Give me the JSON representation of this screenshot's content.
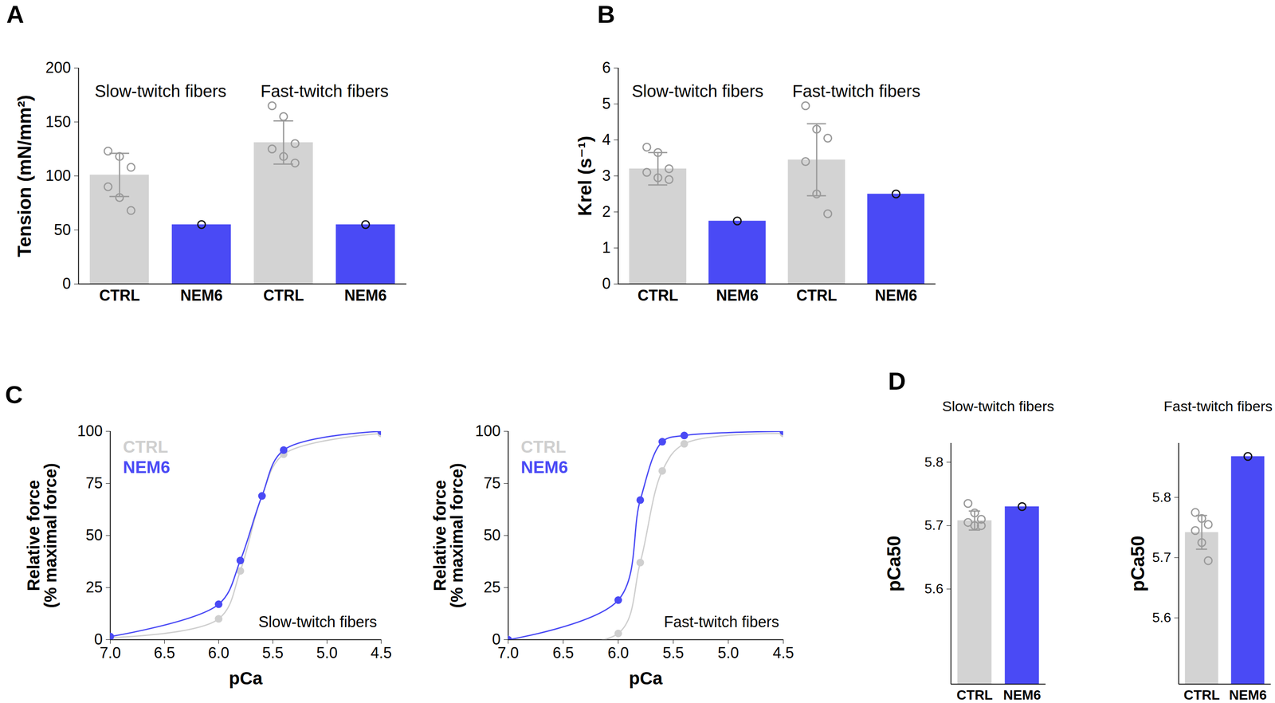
{
  "chart_data": [
    {
      "panel": "A",
      "type": "bar",
      "ylabel": "Tension (mN/mm²)",
      "group_labels": [
        "Slow-twitch fibers",
        "Fast-twitch fibers"
      ],
      "categories": [
        "CTRL",
        "NEM6",
        "CTRL",
        "NEM6"
      ],
      "values": [
        101,
        55,
        131,
        55
      ],
      "errors": [
        20,
        null,
        20,
        null
      ],
      "points": [
        [
          123,
          118,
          108,
          90,
          80,
          68
        ],
        [
          55
        ],
        [
          165,
          155,
          130,
          125,
          118,
          112
        ],
        [
          55
        ]
      ],
      "colors": [
        "#d3d3d3",
        "#4a4af5",
        "#d3d3d3",
        "#4a4af5"
      ],
      "ylim": [
        0,
        200
      ],
      "yticks": [
        0,
        50,
        100,
        150,
        200
      ]
    },
    {
      "panel": "B",
      "type": "bar",
      "ylabel": "Krel (s⁻¹)",
      "group_labels": [
        "Slow-twitch fibers",
        "Fast-twitch fibers"
      ],
      "categories": [
        "CTRL",
        "NEM6",
        "CTRL",
        "NEM6"
      ],
      "values": [
        3.2,
        1.75,
        3.45,
        2.5
      ],
      "errors": [
        0.45,
        null,
        1.0,
        null
      ],
      "points": [
        [
          3.8,
          3.65,
          3.2,
          3.1,
          2.95,
          2.9
        ],
        [
          1.75
        ],
        [
          4.95,
          4.3,
          4.05,
          3.4,
          2.5,
          1.95
        ],
        [
          2.5
        ]
      ],
      "colors": [
        "#d3d3d3",
        "#4a4af5",
        "#d3d3d3",
        "#4a4af5"
      ],
      "ylim": [
        0,
        6
      ],
      "yticks": [
        0,
        1,
        2,
        3,
        4,
        5,
        6
      ]
    },
    {
      "panel": "C",
      "type": "line",
      "ylabel": "Relative force\n(% maximal force)",
      "xlabel": "pCa",
      "annotation": "Slow-twitch fibers",
      "legend": "top-left",
      "marker": "circle",
      "x": [
        7.0,
        6.0,
        5.8,
        5.6,
        5.4,
        4.5
      ],
      "series": [
        {
          "name": "CTRL",
          "color": "#cfcfcf",
          "values": [
            1,
            10,
            33,
            69,
            89,
            99
          ]
        },
        {
          "name": "NEM6",
          "color": "#4a4af5",
          "values": [
            1.5,
            17,
            38,
            69,
            91,
            100
          ]
        }
      ],
      "xlim": [
        7.0,
        4.5
      ],
      "xticks": [
        {
          "value": 7,
          "label": "7.0"
        },
        6.5,
        {
          "value": 6,
          "label": "6.0"
        },
        5.5,
        {
          "value": 5,
          "label": "5.0"
        },
        4.5
      ],
      "ylim": [
        0,
        100
      ],
      "yticks": [
        0,
        25,
        50,
        75,
        100
      ]
    },
    {
      "type": "line",
      "ylabel": "Relative force\n(% maximal force)",
      "xlabel": "pCa",
      "annotation": "Fast-twitch fibers",
      "legend": "top-left",
      "marker": "circle",
      "x": [
        7.0,
        6.0,
        5.8,
        5.6,
        5.4,
        4.5
      ],
      "series": [
        {
          "name": "CTRL",
          "color": "#cfcfcf",
          "values": [
            0,
            3,
            37,
            81,
            94,
            99
          ]
        },
        {
          "name": "NEM6",
          "color": "#4a4af5",
          "values": [
            0,
            19,
            67,
            95,
            98,
            100
          ]
        }
      ],
      "xlim": [
        7.0,
        4.5
      ],
      "xticks": [
        {
          "value": 7,
          "label": "7.0"
        },
        6.5,
        {
          "value": 6,
          "label": "6.0"
        },
        5.5,
        {
          "value": 5,
          "label": "5.0"
        },
        4.5
      ],
      "ylim": [
        0,
        100
      ],
      "yticks": [
        0,
        25,
        50,
        75,
        100
      ]
    },
    {
      "panel": "D",
      "type": "bar",
      "title": "Slow-twitch fibers",
      "ylabel": "pCa50",
      "categories": [
        "CTRL",
        "NEM6"
      ],
      "values": [
        5.708,
        5.73
      ],
      "errors": [
        0.015,
        null
      ],
      "points": [
        [
          5.735,
          5.72,
          5.71,
          5.705,
          5.7,
          5.7
        ],
        [
          5.73
        ]
      ],
      "colors": [
        "#d3d3d3",
        "#4a4af5"
      ],
      "ylim": [
        5.45,
        5.83
      ],
      "yticks": [
        5.6,
        5.7,
        5.8
      ]
    },
    {
      "type": "bar",
      "title": "Fast-twitch fibers",
      "ylabel": "pCa50",
      "categories": [
        "CTRL",
        "NEM6"
      ],
      "values": [
        5.742,
        5.868
      ],
      "errors": [
        0.028,
        null
      ],
      "points": [
        [
          5.775,
          5.765,
          5.755,
          5.745,
          5.725,
          5.695
        ],
        [
          5.868
        ]
      ],
      "colors": [
        "#d3d3d3",
        "#4a4af5"
      ],
      "ylim": [
        5.49,
        5.89
      ],
      "yticks": [
        5.6,
        5.7,
        5.8
      ]
    }
  ]
}
